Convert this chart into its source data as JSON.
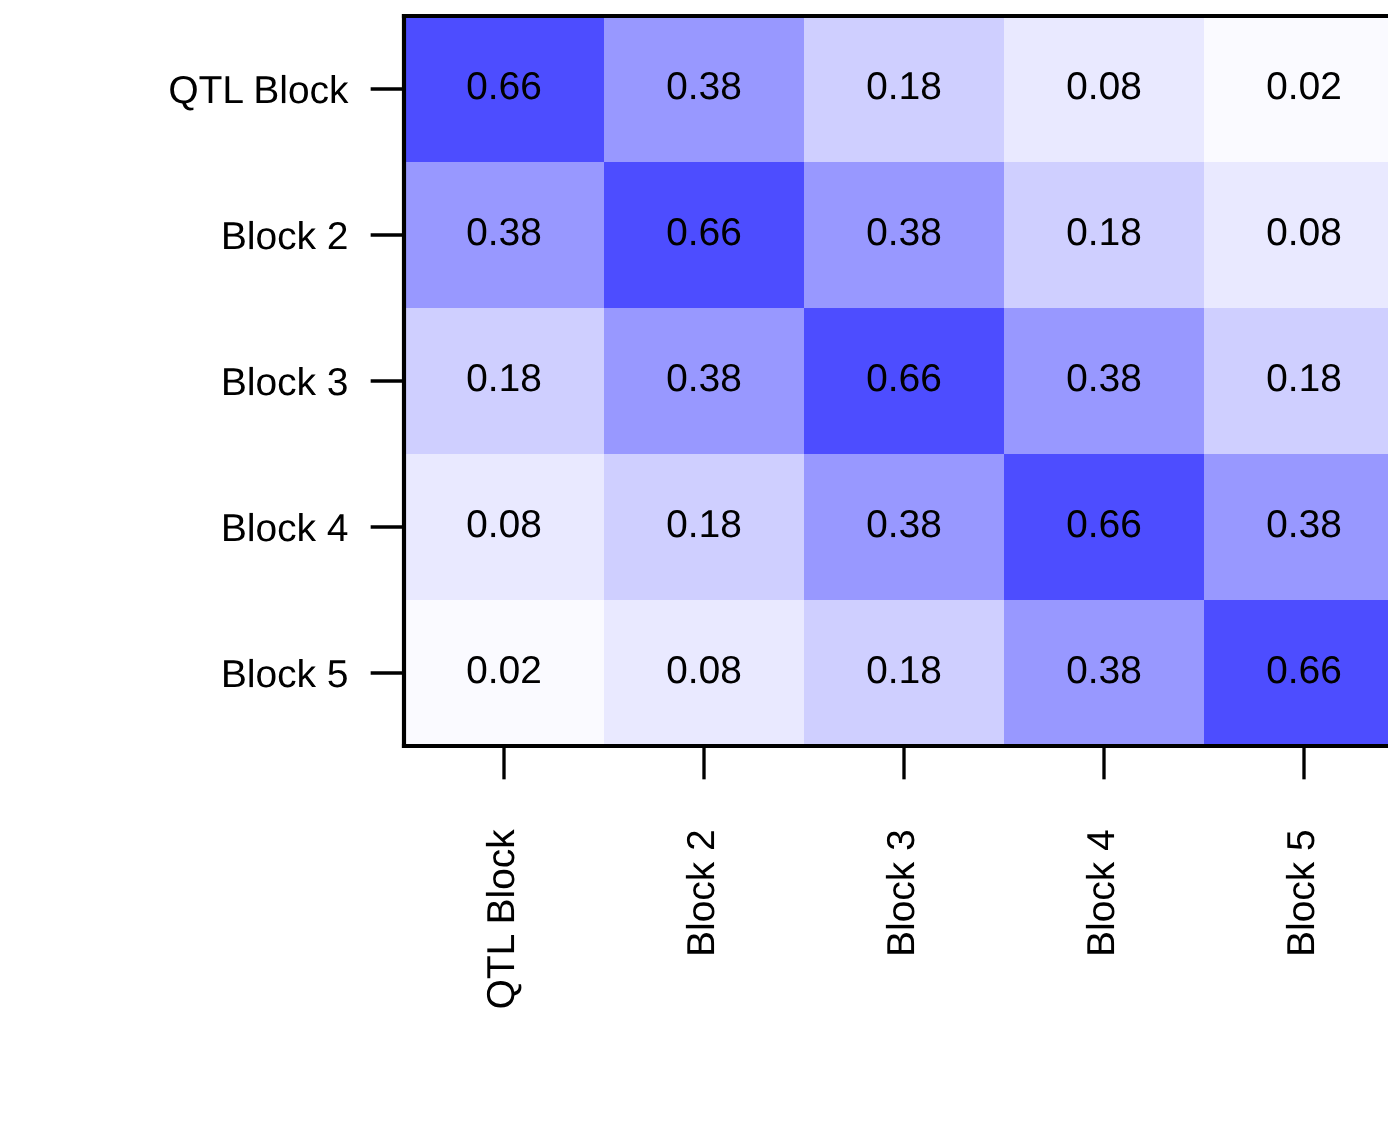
{
  "chart_data": {
    "type": "heatmap",
    "categories": [
      "QTL Block",
      "Block 2",
      "Block 3",
      "Block 4",
      "Block 5"
    ],
    "y_categories": [
      "QTL Block",
      "Block 2",
      "Block 3",
      "Block 4",
      "Block 5"
    ],
    "cells": [
      [
        0.66,
        0.38,
        0.18,
        0.08,
        0.02
      ],
      [
        0.38,
        0.66,
        0.38,
        0.18,
        0.08
      ],
      [
        0.18,
        0.38,
        0.66,
        0.38,
        0.18
      ],
      [
        0.08,
        0.18,
        0.38,
        0.66,
        0.38
      ],
      [
        0.02,
        0.08,
        0.18,
        0.38,
        0.66
      ]
    ],
    "data_labels": true
  }
}
